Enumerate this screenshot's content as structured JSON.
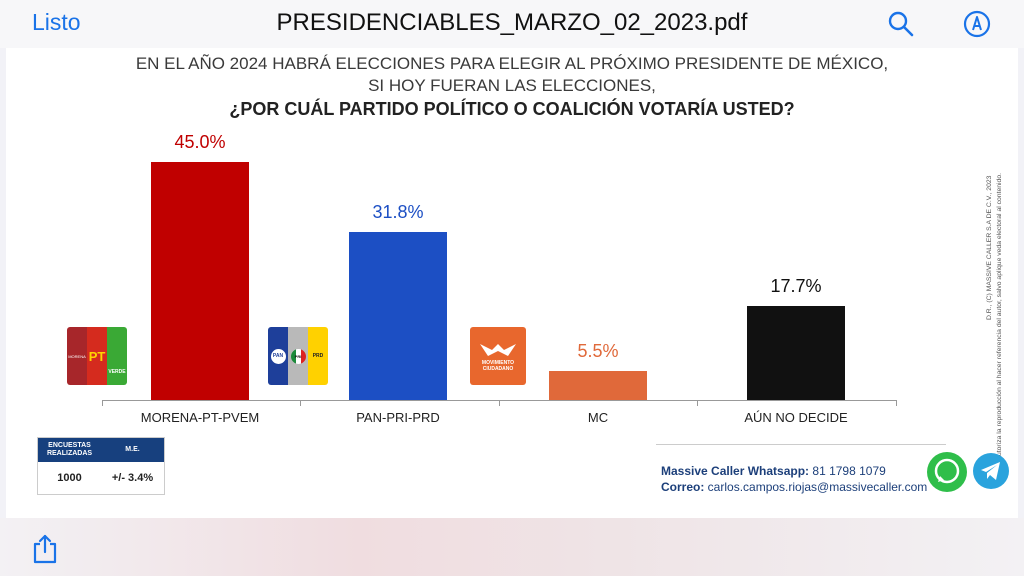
{
  "topbar": {
    "done_label": "Listo",
    "title": "PRESIDENCIABLES_MARZO_02_2023.pdf",
    "search_icon": "search-icon",
    "markup_icon": "markup-icon"
  },
  "header": {
    "line1": "EN EL AÑO 2024 HABRÁ ELECCIONES PARA ELEGIR AL PRÓXIMO PRESIDENTE DE MÉXICO,",
    "line2": "SI HOY FUERAN LAS ELECCIONES,",
    "question": "¿POR CUÁL PARTIDO POLÍTICO O COALICIÓN VOTARÍA USTED?"
  },
  "chart_data": {
    "type": "bar",
    "title": "¿POR CUÁL PARTIDO POLÍTICO O COALICIÓN VOTARÍA USTED?",
    "categories": [
      "MORENA-PT-PVEM",
      "PAN-PRI-PRD",
      "MC",
      "AÚN NO DECIDE"
    ],
    "values": [
      45.0,
      31.8,
      5.5,
      17.7
    ],
    "labels": [
      "45.0%",
      "31.8%",
      "5.5%",
      "17.7%"
    ],
    "colors": [
      "#c00000",
      "#1c4fc4",
      "#e0693a",
      "#111111"
    ],
    "ylim": [
      0,
      50
    ],
    "grid": false
  },
  "logos": {
    "morena_pt_verde": [
      "MORENA",
      "PT",
      "VERDE"
    ],
    "pan_pri_prd": [
      "PAN",
      "PRI",
      "PRD"
    ],
    "mc": [
      "MOVIMIENTO CIUDADANO"
    ]
  },
  "survey": {
    "header_surveys": "ENCUESTAS REALIZADAS",
    "header_me": "M.E.",
    "surveys": "1000",
    "me": "+/- 3.4%"
  },
  "contact": {
    "whatsapp_label": "Massive Caller Whatsapp:",
    "whatsapp_value": " 81 1798 1079",
    "mail_label": "Correo:",
    "mail_value": " carlos.campos.riojas@massivecaller.com"
  },
  "copyright": {
    "line1": "D.R., (C) MASSIVE CALLER S.A DE C.V., 2023",
    "line2": "Se autoriza la reproducción al hacer referencia del autor, salvo aplique veda electoral al contenido."
  },
  "bottombar": {
    "share_icon": "share-icon"
  }
}
